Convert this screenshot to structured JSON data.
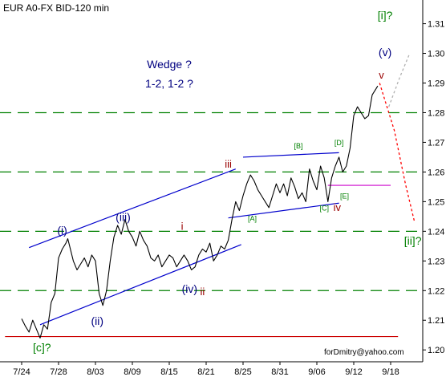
{
  "chart_data": {
    "type": "line",
    "title": "EUR A0-FX BID-120 min",
    "watermark": "forDmitry@yahoo.com",
    "x_ticks": [
      "7/24",
      "7/28",
      "8/03",
      "8/09",
      "8/15",
      "8/21",
      "8/25",
      "8/31",
      "9/06",
      "9/12",
      "9/18"
    ],
    "y_ticks": [
      "1.31",
      "1.30",
      "1.29",
      "1.28",
      "1.27",
      "1.26",
      "1.25",
      "1.24",
      "1.23",
      "1.22",
      "1.21",
      "1.20"
    ],
    "ylim": [
      1.196,
      1.318
    ],
    "xlim": [
      0,
      10.8
    ],
    "grid": "dashed horizontal",
    "colors": {
      "price": "#000000",
      "dashed_grid": "#008000",
      "trendline": "#0000cc",
      "support": "#cc0000",
      "forecast": "#ff0000",
      "forecast_alt": "#b0b0b0",
      "wave_red": "#990000",
      "wave_green": "#008000",
      "wave_blue": "#000080",
      "magenta": "#cc00cc"
    },
    "series": [
      {
        "values": [
          [
            0.0,
            1.2105
          ],
          [
            0.1,
            1.208
          ],
          [
            0.2,
            1.206
          ],
          [
            0.3,
            1.21
          ],
          [
            0.4,
            1.207
          ],
          [
            0.5,
            1.204
          ],
          [
            0.6,
            1.2085
          ],
          [
            0.7,
            1.207
          ],
          [
            0.8,
            1.216
          ],
          [
            0.9,
            1.219
          ],
          [
            1.0,
            1.231
          ],
          [
            1.1,
            1.234
          ],
          [
            1.2,
            1.236
          ],
          [
            1.25,
            1.2375
          ],
          [
            1.3,
            1.235
          ],
          [
            1.4,
            1.23
          ],
          [
            1.5,
            1.227
          ],
          [
            1.6,
            1.229
          ],
          [
            1.7,
            1.231
          ],
          [
            1.8,
            1.228
          ],
          [
            1.9,
            1.232
          ],
          [
            2.0,
            1.23
          ],
          [
            2.1,
            1.219
          ],
          [
            2.2,
            1.215
          ],
          [
            2.3,
            1.22
          ],
          [
            2.4,
            1.23
          ],
          [
            2.5,
            1.238
          ],
          [
            2.6,
            1.242
          ],
          [
            2.7,
            1.239
          ],
          [
            2.8,
            1.244
          ],
          [
            2.9,
            1.24
          ],
          [
            3.0,
            1.238
          ],
          [
            3.1,
            1.235
          ],
          [
            3.2,
            1.24
          ],
          [
            3.3,
            1.237
          ],
          [
            3.4,
            1.235
          ],
          [
            3.5,
            1.231
          ],
          [
            3.6,
            1.23
          ],
          [
            3.7,
            1.232
          ],
          [
            3.8,
            1.228
          ],
          [
            3.9,
            1.23
          ],
          [
            4.0,
            1.232
          ],
          [
            4.1,
            1.231
          ],
          [
            4.2,
            1.228
          ],
          [
            4.3,
            1.23
          ],
          [
            4.4,
            1.232
          ],
          [
            4.5,
            1.23
          ],
          [
            4.6,
            1.227
          ],
          [
            4.7,
            1.228
          ],
          [
            4.8,
            1.232
          ],
          [
            4.9,
            1.234
          ],
          [
            5.0,
            1.233
          ],
          [
            5.1,
            1.236
          ],
          [
            5.2,
            1.23
          ],
          [
            5.3,
            1.232
          ],
          [
            5.4,
            1.235
          ],
          [
            5.5,
            1.234
          ],
          [
            5.6,
            1.237
          ],
          [
            5.7,
            1.244
          ],
          [
            5.8,
            1.25
          ],
          [
            5.9,
            1.247
          ],
          [
            6.0,
            1.252
          ],
          [
            6.1,
            1.256
          ],
          [
            6.2,
            1.259
          ],
          [
            6.3,
            1.257
          ],
          [
            6.4,
            1.254
          ],
          [
            6.5,
            1.252
          ],
          [
            6.6,
            1.25
          ],
          [
            6.7,
            1.248
          ],
          [
            6.8,
            1.252
          ],
          [
            6.9,
            1.256
          ],
          [
            7.0,
            1.253
          ],
          [
            7.1,
            1.256
          ],
          [
            7.2,
            1.252
          ],
          [
            7.3,
            1.258
          ],
          [
            7.4,
            1.255
          ],
          [
            7.5,
            1.251
          ],
          [
            7.6,
            1.253
          ],
          [
            7.7,
            1.25
          ],
          [
            7.8,
            1.261
          ],
          [
            7.9,
            1.257
          ],
          [
            8.0,
            1.254
          ],
          [
            8.1,
            1.262
          ],
          [
            8.2,
            1.258
          ],
          [
            8.3,
            1.25
          ],
          [
            8.4,
            1.258
          ],
          [
            8.5,
            1.262
          ],
          [
            8.6,
            1.265
          ],
          [
            8.7,
            1.26
          ],
          [
            8.8,
            1.262
          ],
          [
            8.9,
            1.268
          ],
          [
            9.0,
            1.279
          ],
          [
            9.1,
            1.282
          ],
          [
            9.2,
            1.28
          ],
          [
            9.3,
            1.278
          ],
          [
            9.4,
            1.279
          ],
          [
            9.5,
            1.286
          ],
          [
            9.6,
            1.288
          ],
          [
            9.65,
            1.289
          ]
        ]
      }
    ],
    "reference_lines": {
      "dashed_green": [
        1.28,
        1.26,
        1.24,
        1.22
      ],
      "red_support": 1.2045,
      "magenta": {
        "from": [
          8.3,
          1.2555
        ],
        "to": [
          10.0,
          1.2555
        ]
      }
    },
    "trendlines": [
      {
        "from": [
          0.2,
          1.2345
        ],
        "to": [
          5.8,
          1.261
        ]
      },
      {
        "from": [
          0.5,
          1.2085
        ],
        "to": [
          5.95,
          1.2355
        ]
      },
      {
        "from": [
          6.0,
          1.265
        ],
        "to": [
          8.6,
          1.2665
        ]
      },
      {
        "from": [
          5.6,
          1.2445
        ],
        "to": [
          8.6,
          1.2495
        ]
      }
    ],
    "forecast": {
      "red_dotted": [
        [
          9.7,
          1.29
        ],
        [
          10.1,
          1.274
        ],
        [
          10.4,
          1.256
        ],
        [
          10.65,
          1.243
        ]
      ],
      "grey_dotted": [
        [
          9.95,
          1.282
        ],
        [
          10.25,
          1.292
        ],
        [
          10.5,
          1.2995
        ]
      ]
    },
    "annotations": [
      {
        "id": "w-i",
        "text": "(i)",
        "at": [
          1.1,
          1.239
        ],
        "color": "wave_blue",
        "size": 14
      },
      {
        "id": "w-iii",
        "text": "(iii)",
        "at": [
          2.75,
          1.2435
        ],
        "color": "wave_blue",
        "size": 14
      },
      {
        "id": "w-ii",
        "text": "(ii)",
        "at": [
          2.05,
          1.2085
        ],
        "color": "wave_blue",
        "size": 14
      },
      {
        "id": "w-iv",
        "text": "(iv)",
        "at": [
          4.55,
          1.2192
        ],
        "color": "wave_blue",
        "size": 14
      },
      {
        "id": "w-v",
        "text": "(v)",
        "at": [
          9.85,
          1.299
        ],
        "color": "wave_blue",
        "size": 14
      },
      {
        "id": "w-c-bottom",
        "text": "[c]?",
        "at": [
          0.55,
          1.1995
        ],
        "color": "wave_green",
        "size": 14
      },
      {
        "id": "w-i-bracket",
        "text": "[i]?",
        "at": [
          9.85,
          1.3115
        ],
        "color": "wave_green",
        "size": 14
      },
      {
        "id": "w-ii-bracket",
        "text": "[ii]?",
        "at": [
          10.6,
          1.2355
        ],
        "color": "wave_green",
        "size": 14
      },
      {
        "id": "w-small-i",
        "text": "i",
        "at": [
          4.35,
          1.2405
        ],
        "color": "wave_red",
        "size": 13
      },
      {
        "id": "w-small-ii",
        "text": "ii",
        "at": [
          4.9,
          1.2185
        ],
        "color": "wave_red",
        "size": 13
      },
      {
        "id": "w-small-iii",
        "text": "iii",
        "at": [
          5.6,
          1.2615
        ],
        "color": "wave_red",
        "size": 13
      },
      {
        "id": "w-small-iv",
        "text": "iv",
        "at": [
          8.55,
          1.2468
        ],
        "color": "wave_red",
        "size": 13
      },
      {
        "id": "w-small-v",
        "text": "v",
        "at": [
          9.75,
          1.2915
        ],
        "color": "wave_red",
        "size": 13
      },
      {
        "id": "w-A",
        "text": "[A]",
        "at": [
          6.25,
          1.2435
        ],
        "color": "wave_green",
        "size": 9
      },
      {
        "id": "w-B",
        "text": "[B]",
        "at": [
          7.5,
          1.268
        ],
        "color": "wave_green",
        "size": 9
      },
      {
        "id": "w-C",
        "text": "[C]",
        "at": [
          8.2,
          1.247
        ],
        "color": "wave_green",
        "size": 9
      },
      {
        "id": "w-D",
        "text": "[D]",
        "at": [
          8.6,
          1.269
        ],
        "color": "wave_green",
        "size": 9
      },
      {
        "id": "w-E",
        "text": "[E]",
        "at": [
          8.75,
          1.251
        ],
        "color": "wave_green",
        "size": 9
      },
      {
        "id": "wedge-q",
        "text": "Wedge ?",
        "at": [
          4.0,
          1.295
        ],
        "color": "wave_blue",
        "size": 14
      },
      {
        "id": "wave-count-q",
        "text": "1-2, 1-2 ?",
        "at": [
          4.0,
          1.2885
        ],
        "color": "wave_blue",
        "size": 14
      }
    ]
  }
}
